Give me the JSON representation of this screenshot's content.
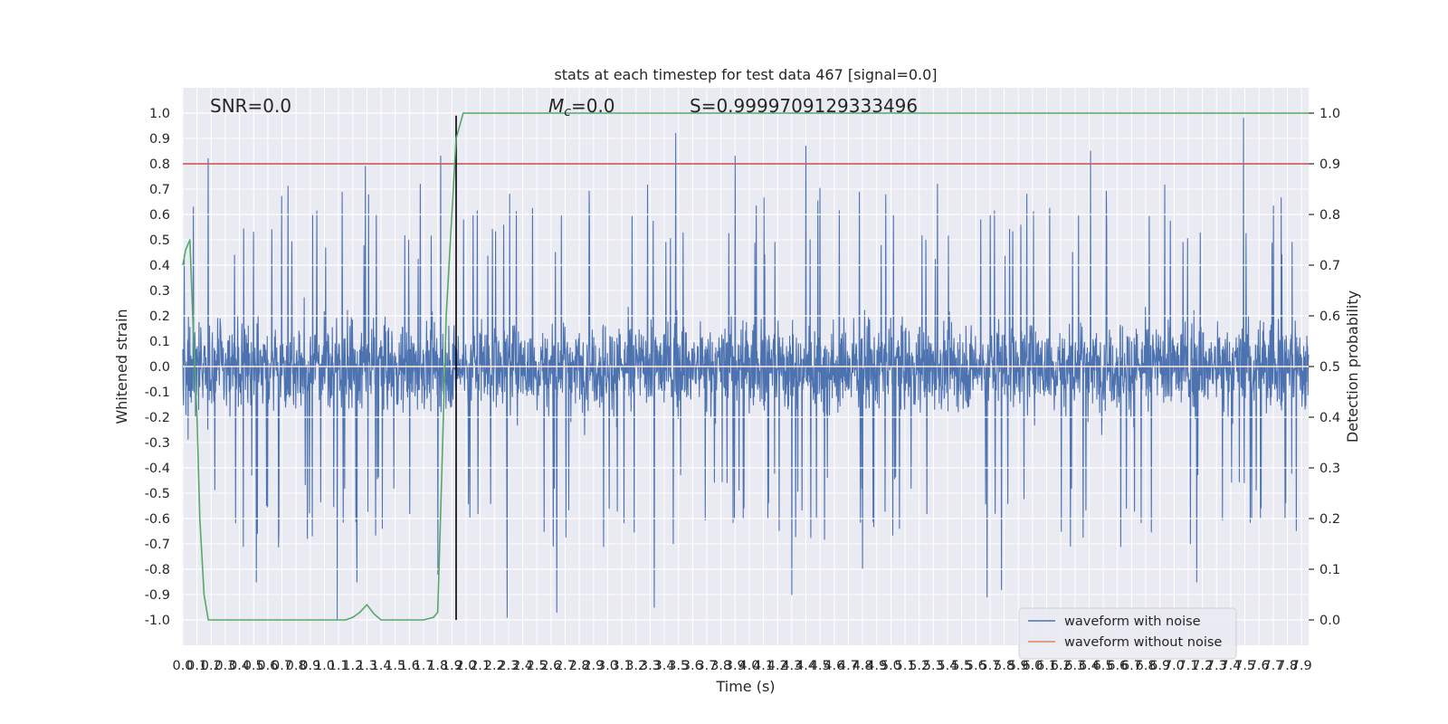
{
  "chart_data": {
    "type": "line",
    "title": "stats at each timestep for test data 467 [signal=0.0]",
    "xlabel": "Time (s)",
    "ylabel": "Whitened strain",
    "y2label": "Detection probability",
    "xlim": [
      0.0,
      7.95
    ],
    "ylim": [
      -1.1,
      1.1
    ],
    "y2lim": [
      -0.05,
      1.05
    ],
    "x_ticks": [
      0.0,
      0.1,
      0.2,
      0.3,
      0.4,
      0.5,
      0.6,
      0.7,
      0.8,
      0.9,
      1.0,
      1.1,
      1.2,
      1.3,
      1.4,
      1.5,
      1.6,
      1.7,
      1.8,
      1.9,
      2.0,
      2.1,
      2.2,
      2.3,
      2.4,
      2.5,
      2.6,
      2.7,
      2.8,
      2.9,
      3.0,
      3.1,
      3.2,
      3.3,
      3.4,
      3.5,
      3.6,
      3.7,
      3.8,
      3.9,
      4.0,
      4.1,
      4.2,
      4.3,
      4.4,
      4.5,
      4.6,
      4.7,
      4.8,
      4.9,
      5.0,
      5.1,
      5.2,
      5.3,
      5.4,
      5.5,
      5.6,
      5.7,
      5.8,
      5.9,
      6.0,
      6.1,
      6.2,
      6.3,
      6.4,
      6.5,
      6.6,
      6.7,
      6.8,
      6.9,
      7.0,
      7.1,
      7.2,
      7.3,
      7.4,
      7.5,
      7.6,
      7.7,
      7.8,
      7.9
    ],
    "y_ticks": [
      -1.0,
      -0.9,
      -0.8,
      -0.7,
      -0.6,
      -0.5,
      -0.4,
      -0.3,
      -0.2,
      -0.1,
      0.0,
      0.1,
      0.2,
      0.3,
      0.4,
      0.5,
      0.6,
      0.7,
      0.8,
      0.9,
      1.0
    ],
    "y2_ticks": [
      0.0,
      0.1,
      0.2,
      0.3,
      0.4,
      0.5,
      0.6,
      0.7,
      0.8,
      0.9,
      1.0
    ],
    "grid": true,
    "legend_position": "lower-right",
    "annotations": {
      "snr": "SNR=0.0",
      "mc_symbol": "M",
      "mc_subscript": "c",
      "mc_value": "=0.0",
      "s": "S=0.9999709129333496"
    },
    "series": [
      {
        "name": "waveform with noise",
        "color": "#4c72b0",
        "kind": "noise",
        "x_range": [
          0.0,
          7.95
        ],
        "typical_envelope": [
          -0.42,
          0.42
        ],
        "peaks": [
          {
            "x": 0.18,
            "y": 0.82
          },
          {
            "x": 1.09,
            "y": 0.83
          },
          {
            "x": 1.29,
            "y": 0.79
          },
          {
            "x": 1.82,
            "y": 0.83
          },
          {
            "x": 3.48,
            "y": 0.92
          },
          {
            "x": 3.9,
            "y": 0.83
          },
          {
            "x": 4.4,
            "y": 0.87
          },
          {
            "x": 4.8,
            "y": 0.98
          },
          {
            "x": 6.41,
            "y": 0.85
          },
          {
            "x": 7.49,
            "y": 0.98
          }
        ],
        "troughs": [
          {
            "x": 1.09,
            "y": -1.0
          },
          {
            "x": 1.23,
            "y": -0.85
          },
          {
            "x": 2.29,
            "y": -0.99
          },
          {
            "x": 2.64,
            "y": -0.97
          },
          {
            "x": 3.33,
            "y": -0.95
          },
          {
            "x": 4.3,
            "y": -0.9
          },
          {
            "x": 5.68,
            "y": -0.91
          },
          {
            "x": 5.78,
            "y": -0.88
          },
          {
            "x": 7.16,
            "y": -0.85
          },
          {
            "x": 0.52,
            "y": -0.85
          },
          {
            "x": 1.8,
            "y": -0.82
          },
          {
            "x": 4.8,
            "y": -0.8
          }
        ]
      },
      {
        "name": "waveform without noise",
        "color": "#dd8452",
        "x": [
          0.0,
          7.95
        ],
        "y": [
          0.0,
          0.0
        ]
      },
      {
        "name": "detection probability",
        "color": "#55a868",
        "axis": "right",
        "x": [
          0.0,
          0.02,
          0.05,
          0.07,
          0.1,
          0.12,
          0.15,
          0.18,
          0.25,
          0.4,
          0.6,
          0.8,
          1.0,
          1.15,
          1.2,
          1.25,
          1.3,
          1.35,
          1.4,
          1.5,
          1.6,
          1.7,
          1.77,
          1.8,
          1.83,
          1.86,
          1.9,
          1.93,
          1.98,
          7.95
        ],
        "y": [
          0.7,
          0.73,
          0.75,
          0.6,
          0.4,
          0.2,
          0.05,
          0.0,
          0.0,
          0.0,
          0.0,
          0.0,
          0.0,
          0.0,
          0.005,
          0.015,
          0.03,
          0.012,
          0.0,
          0.0,
          0.0,
          0.0,
          0.005,
          0.015,
          0.3,
          0.6,
          0.8,
          0.95,
          1.0,
          1.0
        ]
      }
    ],
    "reference_lines": [
      {
        "orientation": "horizontal",
        "axis": "right",
        "value": 0.9,
        "color": "#c44e52"
      },
      {
        "orientation": "vertical",
        "value": 1.93,
        "y_range": [
          -1.0,
          0.99
        ],
        "color": "#000000"
      }
    ]
  }
}
